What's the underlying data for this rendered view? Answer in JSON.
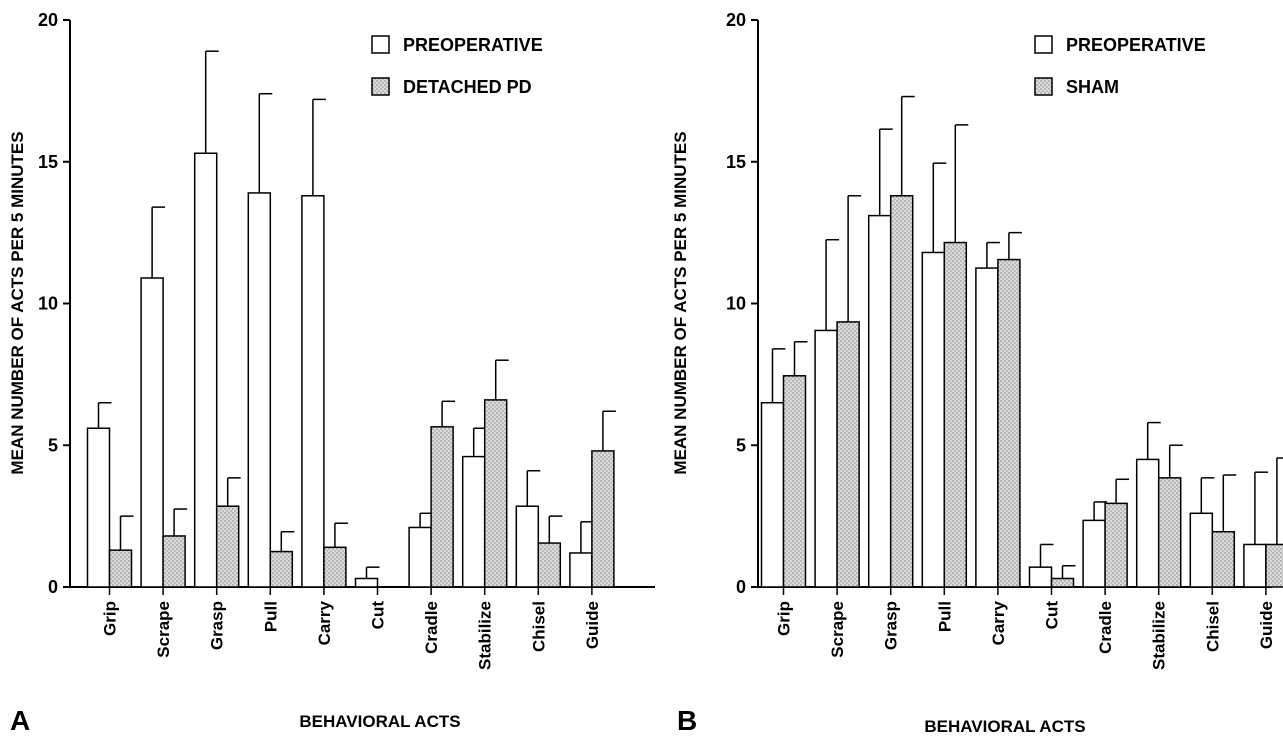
{
  "colors": {
    "preoperative_fill": "#ffffff",
    "comparison_fill": "#d9d9d9",
    "comparison_dot": "#7a7a7a",
    "stroke": "#000000"
  },
  "chart_data": [
    {
      "type": "bar",
      "panel": "A",
      "title": "",
      "xlabel": "BEHAVIORAL ACTS",
      "ylabel": "MEAN NUMBER OF ACTS PER 5 MINUTES",
      "ylim": [
        0,
        20
      ],
      "yticks": [
        0,
        5,
        10,
        15,
        20
      ],
      "grid": false,
      "legend_position": "top-right",
      "categories": [
        "Grip",
        "Scrape",
        "Grasp",
        "Pull",
        "Carry",
        "Cut",
        "Cradle",
        "Stabilize",
        "Chisel",
        "Guide"
      ],
      "series": [
        {
          "name": "PREOPERATIVE",
          "values": [
            5.6,
            10.9,
            15.3,
            13.9,
            13.8,
            0.3,
            2.1,
            4.6,
            2.85,
            1.2
          ],
          "error_upper": [
            6.5,
            13.4,
            18.9,
            17.4,
            17.2,
            0.7,
            2.6,
            5.6,
            4.1,
            2.3
          ]
        },
        {
          "name": "DETACHED PD",
          "values": [
            1.3,
            1.8,
            2.85,
            1.25,
            1.4,
            0,
            5.65,
            6.6,
            1.55,
            4.8
          ],
          "error_upper": [
            2.5,
            2.75,
            3.85,
            1.95,
            2.25,
            0,
            6.55,
            8.0,
            2.5,
            6.2
          ]
        }
      ]
    },
    {
      "type": "bar",
      "panel": "B",
      "title": "",
      "xlabel": "BEHAVIORAL ACTS",
      "ylabel": "MEAN NUMBER OF ACTS PER 5 MINUTES",
      "ylim": [
        0,
        20
      ],
      "yticks": [
        0,
        5,
        10,
        15,
        20
      ],
      "grid": false,
      "legend_position": "top-right",
      "categories": [
        "Grip",
        "Scrape",
        "Grasp",
        "Pull",
        "Carry",
        "Cut",
        "Cradle",
        "Stabilize",
        "Chisel",
        "Guide"
      ],
      "series": [
        {
          "name": "PREOPERATIVE",
          "values": [
            6.5,
            9.05,
            13.1,
            11.8,
            11.25,
            0.7,
            2.35,
            4.5,
            2.6,
            1.5
          ],
          "error_upper": [
            8.4,
            12.25,
            16.15,
            14.95,
            12.15,
            1.5,
            3.0,
            5.8,
            3.85,
            4.05
          ]
        },
        {
          "name": "SHAM",
          "values": [
            7.45,
            9.35,
            13.8,
            12.15,
            11.55,
            0.3,
            2.95,
            3.85,
            1.95,
            1.5
          ],
          "error_upper": [
            8.65,
            13.8,
            17.3,
            16.3,
            12.5,
            0.75,
            3.8,
            5.0,
            3.95,
            4.55
          ]
        }
      ]
    }
  ]
}
